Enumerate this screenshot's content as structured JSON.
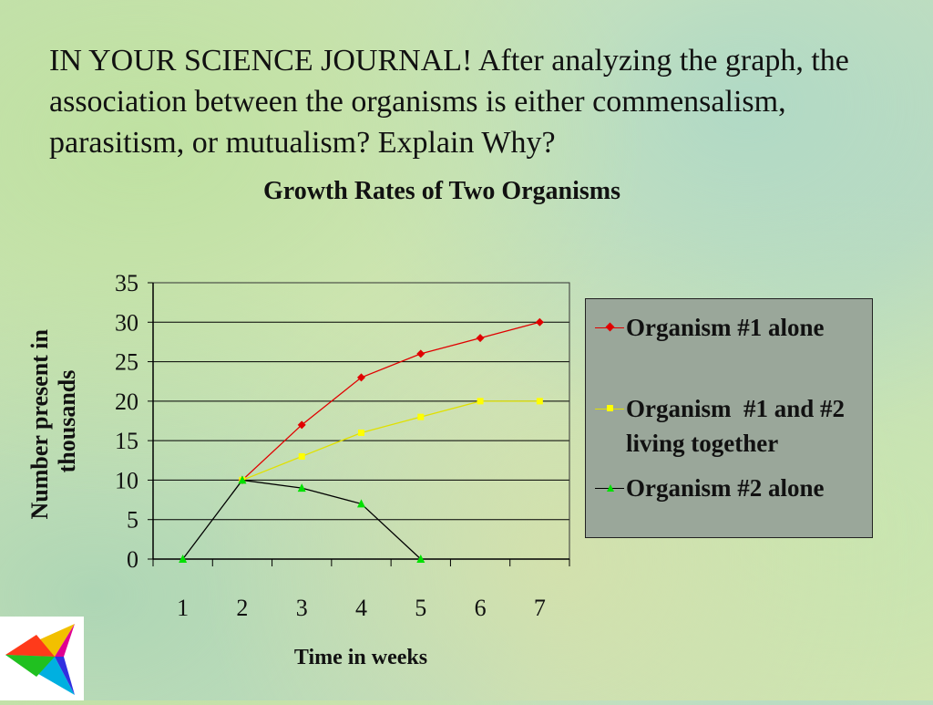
{
  "slide": {
    "text": "IN YOUR SCIENCE JOURNAL!  After analyzing the graph, the association between the organisms is either commensalism, parasitism, or mutualism? Explain Why?"
  },
  "colors": {
    "organism1": "#e00000",
    "together": "#ffff00",
    "organism2": "#000000",
    "organism2_marker": "#00e000",
    "legend_bg": "#9aa79a"
  },
  "chart_data": {
    "type": "line",
    "title": "Growth Rates of Two Organisms",
    "xlabel": "Time in weeks",
    "ylabel": "Number present in thousands",
    "categories": [
      "1",
      "2",
      "3",
      "4",
      "5",
      "6",
      "7"
    ],
    "ylim": [
      0,
      35
    ],
    "yticks": [
      "0",
      "5",
      "10",
      "15",
      "20",
      "25",
      "30",
      "35"
    ],
    "grid": true,
    "legend_position": "right",
    "series": [
      {
        "name": "Organism #1 alone",
        "values": [
          null,
          10,
          17,
          23,
          26,
          28,
          30
        ],
        "marker": "diamond"
      },
      {
        "name": "Organism  #1 and #2 living together",
        "values": [
          null,
          10,
          13,
          16,
          18,
          20,
          20
        ],
        "marker": "square"
      },
      {
        "name": "Organism #2 alone",
        "values": [
          0,
          10,
          9,
          7,
          0,
          null,
          null
        ],
        "marker": "triangle"
      }
    ]
  }
}
